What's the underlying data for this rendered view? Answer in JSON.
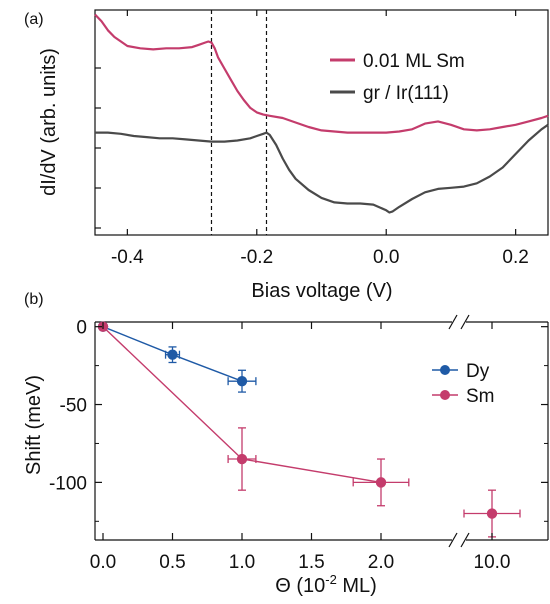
{
  "chart_data": [
    {
      "panel_label": "(a)",
      "type": "line",
      "xlabel": "Bias voltage (V)",
      "ylabel": "dI/dV (arb. units)",
      "xlim": [
        -0.45,
        0.25
      ],
      "xticks": [
        {
          "value": -0.4,
          "label": "-0.4"
        },
        {
          "value": -0.2,
          "label": "-0.2"
        },
        {
          "value": 0.0,
          "label": "0.0"
        },
        {
          "value": 0.2,
          "label": "0.2"
        }
      ],
      "yticks": 5,
      "y_ticks_unlabeled": true,
      "ylim": [
        0,
        1
      ],
      "reference_lines_x": [
        -0.27,
        -0.185
      ],
      "legend_position": "top-right",
      "series": [
        {
          "name": "0.01 ML Sm",
          "color": "#c43c6c",
          "x": [
            -0.45,
            -0.44,
            -0.43,
            -0.42,
            -0.41,
            -0.4,
            -0.38,
            -0.36,
            -0.34,
            -0.32,
            -0.3,
            -0.29,
            -0.28,
            -0.275,
            -0.27,
            -0.265,
            -0.26,
            -0.25,
            -0.24,
            -0.23,
            -0.22,
            -0.21,
            -0.2,
            -0.19,
            -0.18,
            -0.16,
            -0.14,
            -0.12,
            -0.1,
            -0.08,
            -0.06,
            -0.04,
            -0.02,
            0.0,
            0.02,
            0.04,
            0.06,
            0.08,
            0.1,
            0.12,
            0.14,
            0.16,
            0.18,
            0.2,
            0.22,
            0.24,
            0.25
          ],
          "y": [
            0.98,
            0.95,
            0.91,
            0.88,
            0.86,
            0.84,
            0.83,
            0.825,
            0.83,
            0.83,
            0.835,
            0.845,
            0.855,
            0.86,
            0.855,
            0.83,
            0.79,
            0.74,
            0.69,
            0.64,
            0.6,
            0.565,
            0.545,
            0.535,
            0.53,
            0.52,
            0.5,
            0.48,
            0.465,
            0.46,
            0.455,
            0.455,
            0.455,
            0.455,
            0.46,
            0.47,
            0.495,
            0.505,
            0.49,
            0.47,
            0.465,
            0.47,
            0.48,
            0.49,
            0.505,
            0.52,
            0.53
          ]
        },
        {
          "name": "gr / Ir(111)",
          "color": "#4a4a4a",
          "x": [
            -0.45,
            -0.43,
            -0.41,
            -0.39,
            -0.37,
            -0.35,
            -0.33,
            -0.31,
            -0.29,
            -0.27,
            -0.25,
            -0.23,
            -0.21,
            -0.2,
            -0.19,
            -0.185,
            -0.18,
            -0.17,
            -0.16,
            -0.15,
            -0.14,
            -0.12,
            -0.1,
            -0.08,
            -0.06,
            -0.04,
            -0.02,
            0.0,
            0.005,
            0.01,
            0.02,
            0.04,
            0.06,
            0.08,
            0.1,
            0.12,
            0.14,
            0.16,
            0.18,
            0.2,
            0.22,
            0.24,
            0.25
          ],
          "y": [
            0.455,
            0.455,
            0.45,
            0.44,
            0.435,
            0.43,
            0.43,
            0.425,
            0.42,
            0.415,
            0.415,
            0.42,
            0.43,
            0.44,
            0.45,
            0.455,
            0.445,
            0.4,
            0.34,
            0.29,
            0.25,
            0.2,
            0.165,
            0.145,
            0.14,
            0.14,
            0.135,
            0.11,
            0.1,
            0.105,
            0.125,
            0.16,
            0.19,
            0.205,
            0.21,
            0.215,
            0.23,
            0.26,
            0.3,
            0.36,
            0.42,
            0.47,
            0.49
          ]
        }
      ]
    },
    {
      "panel_label": "(b)",
      "type": "scatter",
      "xlabel": "Θ (10⁻² ML)",
      "ylabel": "Shift (meV)",
      "ylim": [
        -137,
        3
      ],
      "yticks": [
        {
          "value": 0,
          "label": "0"
        },
        {
          "value": -50,
          "label": "-50"
        },
        {
          "value": -100,
          "label": "-100"
        }
      ],
      "x_axis_break": "between 2.0 and 10.0",
      "xticks": [
        {
          "value": 0.0,
          "label": "0.0"
        },
        {
          "value": 0.5,
          "label": "0.5"
        },
        {
          "value": 1.0,
          "label": "1.0"
        },
        {
          "value": 1.5,
          "label": "1.5"
        },
        {
          "value": 2.0,
          "label": "2.0"
        },
        {
          "value": 10.0,
          "label": "10.0"
        }
      ],
      "legend_position": "right",
      "series": [
        {
          "name": "Dy",
          "color": "#1f5aa6",
          "points": [
            {
              "x": 0.0,
              "y": 0,
              "xerr": 0,
              "yerr": 0
            },
            {
              "x": 0.5,
              "y": -18,
              "xerr": 0.05,
              "yerr": 5
            },
            {
              "x": 1.0,
              "y": -35,
              "xerr": 0.1,
              "yerr": 7
            }
          ]
        },
        {
          "name": "Sm",
          "color": "#c43c6c",
          "points": [
            {
              "x": 0.0,
              "y": 0,
              "xerr": 0,
              "yerr": 0
            },
            {
              "x": 1.0,
              "y": -85,
              "xerr": 0.1,
              "yerr": 20
            },
            {
              "x": 2.0,
              "y": -100,
              "xerr": 0.2,
              "yerr": 15
            },
            {
              "x": 10.0,
              "y": -120,
              "xerr": 1.0,
              "yerr": 15
            }
          ]
        }
      ]
    }
  ]
}
